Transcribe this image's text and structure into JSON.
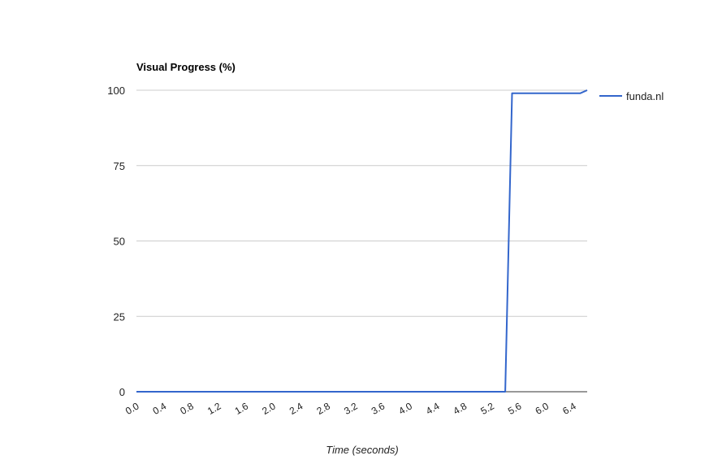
{
  "chart_data": {
    "type": "line",
    "title": "Visual Progress (%)",
    "xlabel": "Time (seconds)",
    "ylabel": "",
    "xlim": [
      0,
      6.6
    ],
    "ylim": [
      0,
      100
    ],
    "x_ticks": [
      "0.0",
      "0.4",
      "0.8",
      "1.2",
      "1.6",
      "2.0",
      "2.4",
      "2.8",
      "3.2",
      "3.6",
      "4.0",
      "4.4",
      "4.8",
      "5.2",
      "5.6",
      "6.0",
      "6.4"
    ],
    "y_ticks": [
      "0",
      "25",
      "50",
      "75",
      "100"
    ],
    "grid": true,
    "legend_position": "right",
    "series": [
      {
        "name": "funda.nl",
        "color": "#3366cc",
        "points": [
          {
            "x": 0.0,
            "y": 0
          },
          {
            "x": 5.4,
            "y": 0
          },
          {
            "x": 5.5,
            "y": 99
          },
          {
            "x": 6.5,
            "y": 99
          },
          {
            "x": 6.6,
            "y": 100
          }
        ]
      }
    ]
  }
}
